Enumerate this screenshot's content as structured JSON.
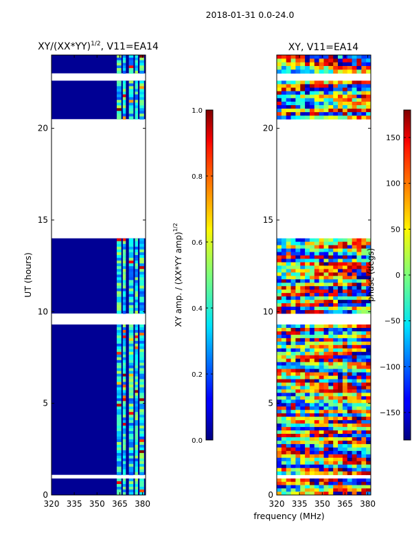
{
  "figure": {
    "suptitle": "2018-01-31 0.0-24.0",
    "xlabel": "frequency (MHz)"
  },
  "chart_data": [
    {
      "type": "heatmap",
      "title": "XY/(XX*YY)",
      "title_exponent": "1/2",
      "title_suffix": ", V11=EA14",
      "xlabel": "",
      "ylabel": "UT (hours)",
      "xlim": [
        320,
        382
      ],
      "ylim": [
        0,
        24
      ],
      "xticks": [
        320,
        335,
        350,
        365,
        380
      ],
      "yticks": [
        0,
        5,
        10,
        15,
        20
      ],
      "colorbar": {
        "label": "XY amp. / (XX*YY amp)",
        "label_exponent": "1/2",
        "range": [
          0.0,
          1.0
        ],
        "ticks": [
          "0.0",
          "0.2",
          "0.4",
          "0.6",
          "0.8",
          "1.0"
        ],
        "colormap": "jet"
      },
      "data_row_ranges_hours": [
        [
          0.0,
          0.9
        ],
        [
          1.1,
          9.3
        ],
        [
          9.9,
          14.0
        ],
        [
          20.5,
          22.6
        ],
        [
          23.0,
          24.0
        ]
      ],
      "background_value": 0.0,
      "bright_channel_bands_mhz": [
        [
          363,
          366
        ],
        [
          367,
          369
        ],
        [
          371,
          374
        ],
        [
          375,
          377
        ],
        [
          378,
          381
        ]
      ],
      "band_typical_value": 0.4,
      "band_peak_value": 0.85
    },
    {
      "type": "heatmap",
      "title": "XY, V11=EA14",
      "xlabel": "",
      "ylabel": "",
      "xlim": [
        320,
        382
      ],
      "ylim": [
        0,
        24
      ],
      "xticks": [
        320,
        335,
        350,
        365,
        380
      ],
      "yticks": [
        0,
        5,
        10,
        15,
        20
      ],
      "colorbar": {
        "label": "phase (degs)",
        "range": [
          -180,
          180
        ],
        "ticks": [
          "-150",
          "-100",
          "-50",
          "0",
          "50",
          "100",
          "150"
        ],
        "colormap": "jet"
      },
      "data_row_ranges_hours": [
        [
          0.0,
          0.9
        ],
        [
          1.1,
          9.3
        ],
        [
          9.9,
          14.0
        ],
        [
          20.5,
          22.6
        ],
        [
          23.0,
          24.0
        ]
      ]
    }
  ]
}
